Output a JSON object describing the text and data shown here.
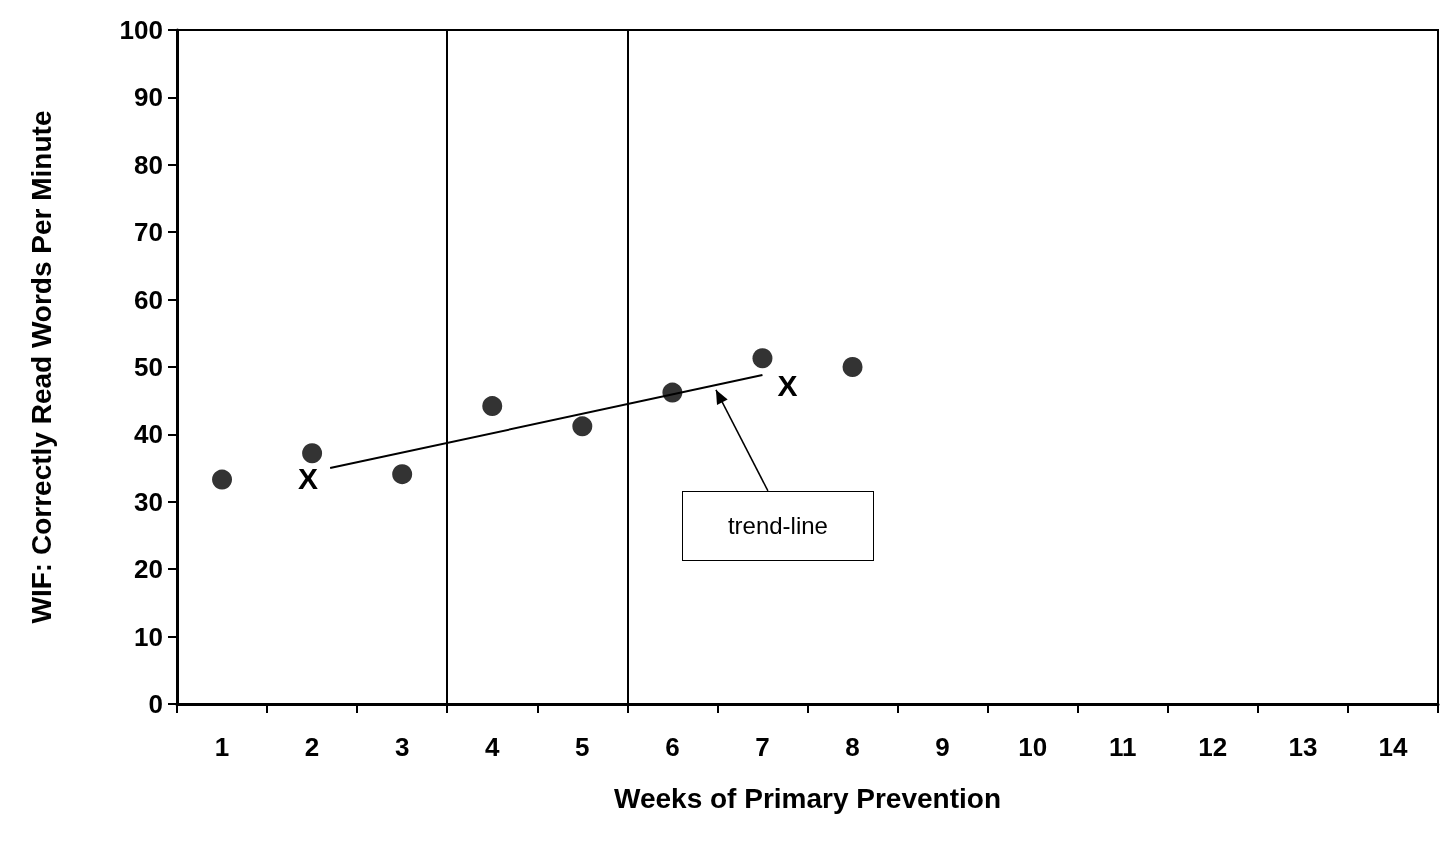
{
  "chart_data": {
    "type": "scatter",
    "xlabel": "Weeks of Primary Prevention",
    "ylabel": "WIF: Correctly Read Words Per Minute",
    "x": [
      1,
      2,
      3,
      4,
      5,
      6,
      7,
      8
    ],
    "series": [
      {
        "color": "#000000",
        "marker": "circle",
        "values": [
          33.3,
          37.2,
          34.1,
          44.2,
          41.2,
          46.2,
          51.3,
          50
        ]
      },
      {
        "type": "line",
        "color": "#000000",
        "marker": "none",
        "line_style": "solid",
        "x": [
          2.2,
          7
        ],
        "values": [
          35,
          48.8
        ]
      }
    ],
    "xlim": [
      0.5,
      14.5
    ],
    "xticks": [
      {
        "value": 0.5,
        "label": null
      },
      1,
      {
        "value": 1.5,
        "label": null
      },
      2,
      {
        "value": 2.5,
        "label": null
      },
      3,
      {
        "value": 3.5,
        "label": null
      },
      4,
      {
        "value": 4.5,
        "label": null
      },
      5,
      {
        "value": 5.5,
        "label": null
      },
      6,
      {
        "value": 6.5,
        "label": null
      },
      7,
      {
        "value": 7.5,
        "label": null
      },
      8,
      {
        "value": 8.5,
        "label": null
      },
      9,
      {
        "value": 9.5,
        "label": null
      },
      10,
      {
        "value": 10.5,
        "label": null
      },
      11,
      {
        "value": 11.5,
        "label": null
      },
      12,
      {
        "value": 12.5,
        "label": null
      },
      13,
      {
        "value": 13.5,
        "label": null
      },
      14,
      {
        "value": 14.5,
        "label": null
      }
    ],
    "ylim": [
      0,
      100
    ],
    "yticks": [
      0,
      10,
      20,
      30,
      40,
      50,
      60,
      70,
      80,
      90,
      100
    ],
    "grid": false,
    "ref_lines": [
      {
        "axis": "x",
        "value": 3.5,
        "color": "#000000",
        "line_style": "solid"
      },
      {
        "axis": "x",
        "value": 5.5,
        "color": "#000000",
        "line_style": "solid"
      }
    ],
    "annotations": [
      {
        "text": "X",
        "x": 2.2,
        "y": 35
      },
      {
        "text": "X",
        "x": 7,
        "y": 48.8
      },
      {
        "text": "trend-line",
        "x": 6.45,
        "y": 47.2
      }
    ]
  }
}
